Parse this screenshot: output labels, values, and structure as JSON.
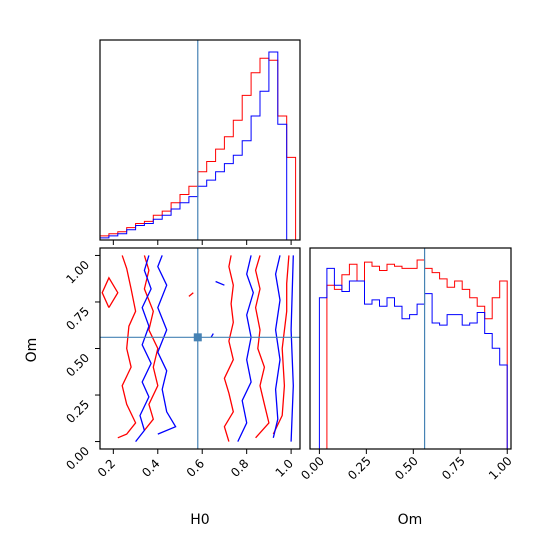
{
  "chart_data": {
    "type": "corner",
    "parameters": [
      "H0",
      "Om"
    ],
    "axis_labels": {
      "x_bottom_left": "H0",
      "x_bottom_right": "Om",
      "y_left": "Om"
    },
    "truth": {
      "H0": 0.58,
      "Om": 0.56
    },
    "truth_color": "#4682b4",
    "series_colors": {
      "red": "#ff0000",
      "blue": "#0000ff"
    },
    "panels": [
      {
        "id": "hist-H0",
        "type": "step-histogram",
        "xlim": [
          0.14,
          1.04
        ],
        "bin_edges": [
          0.14,
          0.18,
          0.22,
          0.26,
          0.3,
          0.34,
          0.38,
          0.42,
          0.46,
          0.5,
          0.54,
          0.58,
          0.62,
          0.66,
          0.7,
          0.74,
          0.78,
          0.82,
          0.86,
          0.9,
          0.94,
          0.98,
          1.02
        ],
        "series": [
          {
            "color": "#ff0000",
            "counts": [
              2,
              3,
              4,
              6,
              8,
              9,
              12,
              14,
              18,
              22,
              26,
              33,
              38,
              44,
              50,
              58,
              70,
              81,
              88,
              87,
              60,
              40
            ]
          },
          {
            "color": "#0000ff",
            "counts": [
              1,
              2,
              3,
              5,
              7,
              8,
              10,
              12,
              15,
              18,
              21,
              26,
              29,
              33,
              37,
              41,
              48,
              60,
              72,
              91,
              56,
              0
            ]
          }
        ]
      },
      {
        "id": "hist-Om",
        "type": "step-histogram",
        "xlim": [
          -0.05,
          1.02
        ],
        "bin_edges": [
          0.0,
          0.04,
          0.08,
          0.12,
          0.16,
          0.2,
          0.24,
          0.28,
          0.32,
          0.36,
          0.4,
          0.44,
          0.48,
          0.52,
          0.56,
          0.6,
          0.64,
          0.68,
          0.72,
          0.76,
          0.8,
          0.84,
          0.88,
          0.92,
          0.96,
          1.0
        ],
        "series": [
          {
            "color": "#ff0000",
            "counts": [
              0,
              78,
              76,
              83,
              88,
              80,
              89,
              87,
              85,
              88,
              87,
              86,
              86,
              90,
              86,
              84,
              81,
              77,
              80,
              76,
              72,
              68,
              62,
              72,
              80
            ]
          },
          {
            "color": "#0000ff",
            "counts": [
              72,
              86,
              78,
              75,
              80,
              80,
              69,
              71,
              68,
              72,
              68,
              62,
              64,
              69,
              74,
              60,
              59,
              64,
              64,
              59,
              60,
              65,
              55,
              48,
              40
            ]
          }
        ]
      },
      {
        "id": "contour-H0-Om",
        "type": "contour",
        "xlim": [
          0.14,
          1.04
        ],
        "ylim": [
          -0.04,
          1.04
        ],
        "contours": [
          {
            "color": "#ff0000",
            "points": [
              [
                0.22,
                0.02
              ],
              [
                0.26,
                0.04
              ],
              [
                0.3,
                0.1
              ],
              [
                0.26,
                0.2
              ],
              [
                0.24,
                0.3
              ],
              [
                0.28,
                0.4
              ],
              [
                0.26,
                0.5
              ],
              [
                0.27,
                0.62
              ],
              [
                0.3,
                0.7
              ],
              [
                0.28,
                0.82
              ],
              [
                0.26,
                0.93
              ],
              [
                0.24,
                1.0
              ]
            ]
          },
          {
            "color": "#ff0000",
            "points": [
              [
                0.34,
                0.06
              ],
              [
                0.38,
                0.12
              ],
              [
                0.36,
                0.2
              ],
              [
                0.4,
                0.3
              ],
              [
                0.38,
                0.4
              ],
              [
                0.4,
                0.5
              ],
              [
                0.36,
                0.6
              ],
              [
                0.38,
                0.7
              ],
              [
                0.34,
                0.82
              ],
              [
                0.36,
                0.92
              ],
              [
                0.34,
                1.0
              ]
            ]
          },
          {
            "color": "#ff0000",
            "points": [
              [
                0.72,
                0.0
              ],
              [
                0.7,
                0.08
              ],
              [
                0.74,
                0.16
              ],
              [
                0.72,
                0.26
              ],
              [
                0.7,
                0.34
              ],
              [
                0.74,
                0.44
              ],
              [
                0.72,
                0.54
              ],
              [
                0.74,
                0.64
              ],
              [
                0.73,
                0.74
              ],
              [
                0.74,
                0.84
              ],
              [
                0.72,
                0.94
              ],
              [
                0.73,
                1.0
              ]
            ]
          },
          {
            "color": "#ff0000",
            "points": [
              [
                0.84,
                0.02
              ],
              [
                0.9,
                0.1
              ],
              [
                0.88,
                0.2
              ],
              [
                0.86,
                0.3
              ],
              [
                0.88,
                0.4
              ],
              [
                0.85,
                0.5
              ],
              [
                0.86,
                0.6
              ],
              [
                0.84,
                0.72
              ],
              [
                0.86,
                0.82
              ],
              [
                0.84,
                0.92
              ],
              [
                0.86,
                1.0
              ]
            ]
          },
          {
            "color": "#ff0000",
            "points": [
              [
                0.92,
                0.04
              ],
              [
                0.96,
                0.14
              ],
              [
                0.97,
                0.3
              ],
              [
                0.96,
                0.5
              ],
              [
                0.98,
                0.7
              ],
              [
                0.98,
                0.85
              ],
              [
                0.99,
                1.0
              ]
            ]
          },
          {
            "color": "#ff0000",
            "points": [
              [
                0.18,
                0.72
              ],
              [
                0.22,
                0.8
              ],
              [
                0.18,
                0.88
              ],
              [
                0.15,
                0.8
              ],
              [
                0.18,
                0.72
              ]
            ]
          },
          {
            "color": "#ff0000",
            "points": [
              [
                0.54,
                0.78
              ],
              [
                0.56,
                0.8
              ]
            ]
          },
          {
            "color": "#0000ff",
            "points": [
              [
                0.3,
                0.0
              ],
              [
                0.34,
                0.06
              ],
              [
                0.32,
                0.14
              ],
              [
                0.36,
                0.24
              ],
              [
                0.33,
                0.32
              ],
              [
                0.37,
                0.42
              ],
              [
                0.33,
                0.52
              ],
              [
                0.36,
                0.62
              ],
              [
                0.33,
                0.72
              ],
              [
                0.37,
                0.82
              ],
              [
                0.34,
                0.92
              ],
              [
                0.36,
                1.0
              ]
            ]
          },
          {
            "color": "#0000ff",
            "points": [
              [
                0.4,
                0.04
              ],
              [
                0.48,
                0.08
              ],
              [
                0.44,
                0.16
              ],
              [
                0.42,
                0.28
              ],
              [
                0.44,
                0.38
              ],
              [
                0.4,
                0.48
              ],
              [
                0.44,
                0.6
              ],
              [
                0.4,
                0.72
              ],
              [
                0.44,
                0.84
              ],
              [
                0.4,
                0.94
              ],
              [
                0.42,
                1.0
              ]
            ]
          },
          {
            "color": "#0000ff",
            "points": [
              [
                0.76,
                0.0
              ],
              [
                0.8,
                0.1
              ],
              [
                0.78,
                0.22
              ],
              [
                0.82,
                0.32
              ],
              [
                0.8,
                0.44
              ],
              [
                0.82,
                0.56
              ],
              [
                0.8,
                0.68
              ],
              [
                0.83,
                0.8
              ],
              [
                0.8,
                0.9
              ],
              [
                0.82,
                1.0
              ]
            ]
          },
          {
            "color": "#0000ff",
            "points": [
              [
                0.92,
                0.02
              ],
              [
                0.94,
                0.12
              ],
              [
                0.93,
                0.28
              ],
              [
                0.95,
                0.44
              ],
              [
                0.93,
                0.6
              ],
              [
                0.95,
                0.76
              ],
              [
                0.93,
                0.9
              ],
              [
                0.95,
                1.0
              ]
            ]
          },
          {
            "color": "#0000ff",
            "points": [
              [
                1.0,
                0.0
              ],
              [
                1.01,
                0.3
              ],
              [
                1.0,
                0.6
              ],
              [
                1.01,
                1.0
              ]
            ]
          },
          {
            "color": "#0000ff",
            "points": [
              [
                0.66,
                0.86
              ],
              [
                0.7,
                0.84
              ]
            ]
          },
          {
            "color": "#0000ff",
            "points": [
              [
                0.64,
                0.56
              ],
              [
                0.65,
                0.58
              ]
            ]
          }
        ]
      }
    ],
    "ticks": {
      "H0": [
        "0.2",
        "0.4",
        "0.6",
        "0.8",
        "1.0"
      ],
      "H0_values": [
        0.2,
        0.4,
        0.6,
        0.8,
        1.0
      ],
      "Om": [
        "0.00",
        "0.25",
        "0.50",
        "0.75",
        "1.00"
      ],
      "Om_values": [
        0.0,
        0.25,
        0.5,
        0.75,
        1.0
      ]
    }
  }
}
